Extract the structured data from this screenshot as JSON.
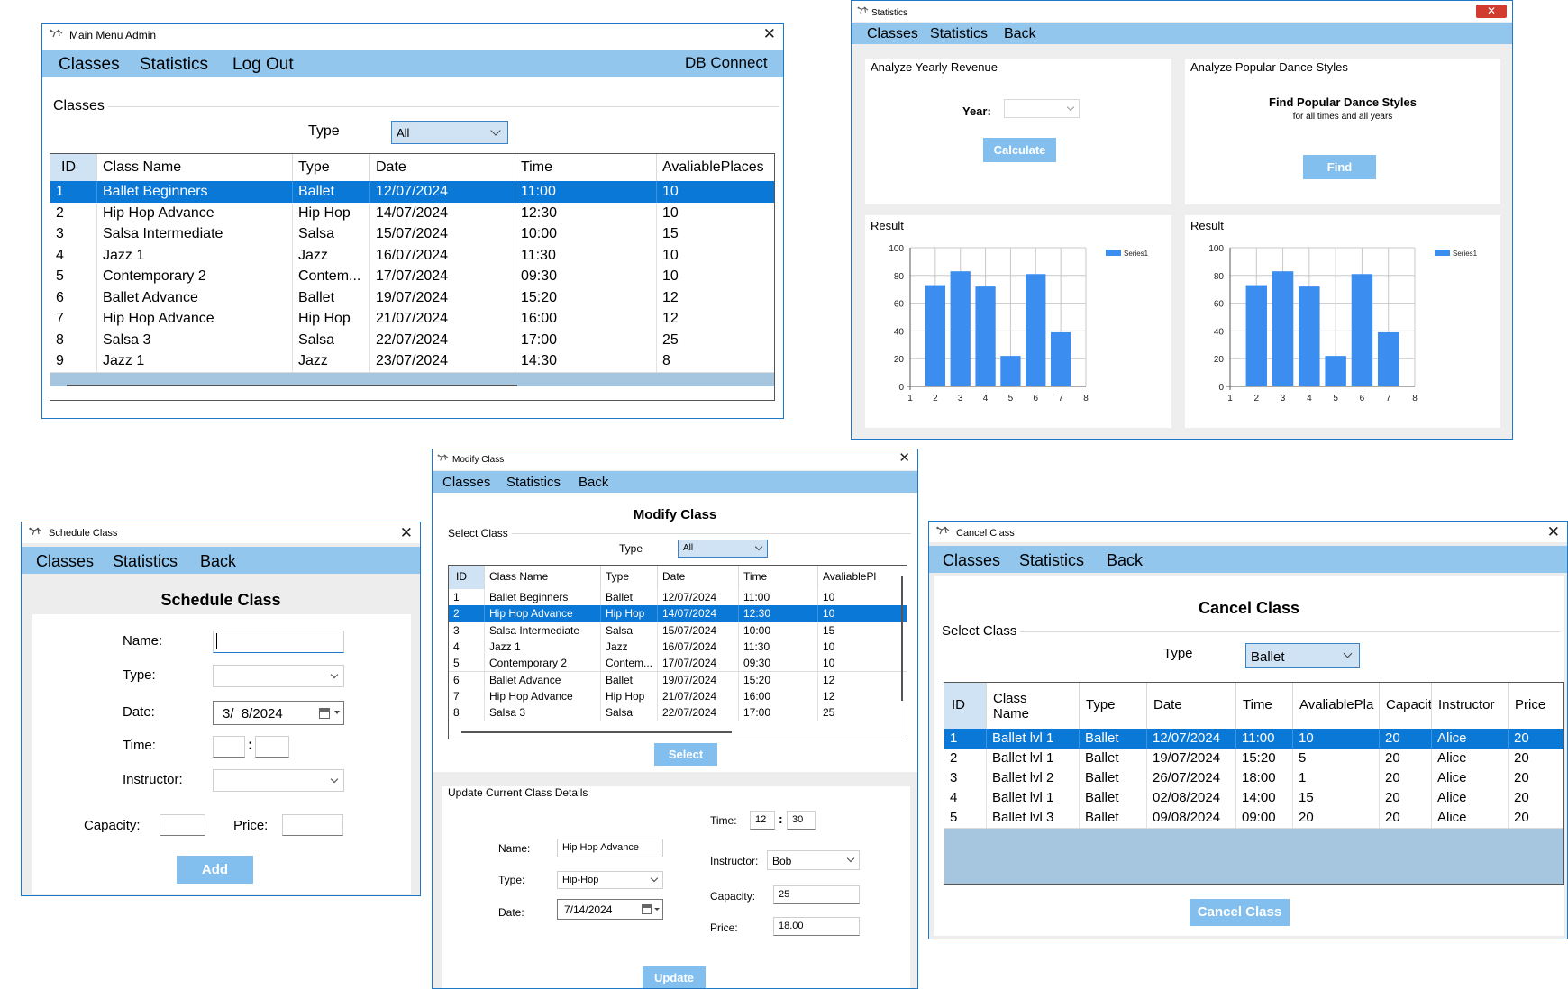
{
  "main_menu": {
    "title": "Main Menu Admin",
    "menu": [
      "Classes",
      "Statistics",
      "Log Out"
    ],
    "db_connect": "DB Connect",
    "group_title": "Classes",
    "type_label": "Type",
    "type_value": "All",
    "columns": [
      "ID",
      "Class Name",
      "Type",
      "Date",
      "Time",
      "AvaliablePlaces"
    ],
    "rows": [
      [
        "1",
        "Ballet Beginners",
        "Ballet",
        "12/07/2024",
        "11:00",
        "10"
      ],
      [
        "2",
        "Hip Hop Advance",
        "Hip Hop",
        "14/07/2024",
        "12:30",
        "10"
      ],
      [
        "3",
        "Salsa Intermediate",
        "Salsa",
        "15/07/2024",
        "10:00",
        "15"
      ],
      [
        "4",
        "Jazz 1",
        "Jazz",
        "16/07/2024",
        "11:30",
        "10"
      ],
      [
        "5",
        "Contemporary 2",
        "Contem...",
        "17/07/2024",
        "09:30",
        "10"
      ],
      [
        "6",
        "Ballet Advance",
        "Ballet",
        "19/07/2024",
        "15:20",
        "12"
      ],
      [
        "7",
        "Hip Hop Advance",
        "Hip Hop",
        "21/07/2024",
        "16:00",
        "12"
      ],
      [
        "8",
        "Salsa 3",
        "Salsa",
        "22/07/2024",
        "17:00",
        "25"
      ],
      [
        "9",
        "Jazz 1",
        "Jazz",
        "23/07/2024",
        "14:30",
        "8"
      ]
    ]
  },
  "statistics": {
    "title": "Statistics",
    "menu": [
      "Classes",
      "Statistics",
      "Back"
    ],
    "revenue_group": "Analyze Yearly Revenue",
    "year_label": "Year:",
    "year_value": "",
    "calculate_label": "Calculate",
    "styles_group": "Analyze Popular Dance Styles",
    "find_title": "Find Popular Dance Styles",
    "find_subtitle": "for all times and all years",
    "find_label": "Find",
    "result_label": "Result"
  },
  "chart_data": [
    {
      "type": "bar",
      "x": [
        2,
        3,
        4,
        5,
        6,
        7
      ],
      "series": [
        {
          "name": "Series1",
          "values": [
            73,
            83,
            72,
            22,
            81,
            39
          ]
        }
      ],
      "x_ticks": [
        1,
        2,
        3,
        4,
        5,
        6,
        7,
        8
      ],
      "y_ticks": [
        0,
        20,
        40,
        60,
        80,
        100
      ],
      "xlim": [
        1,
        8
      ],
      "ylim": [
        0,
        100
      ],
      "grid": true,
      "legend": "top-right",
      "color": "#3b8ef0"
    },
    {
      "type": "bar",
      "x": [
        2,
        3,
        4,
        5,
        6,
        7
      ],
      "series": [
        {
          "name": "Series1",
          "values": [
            73,
            83,
            72,
            22,
            81,
            39
          ]
        }
      ],
      "x_ticks": [
        1,
        2,
        3,
        4,
        5,
        6,
        7,
        8
      ],
      "y_ticks": [
        0,
        20,
        40,
        60,
        80,
        100
      ],
      "xlim": [
        1,
        8
      ],
      "ylim": [
        0,
        100
      ],
      "grid": true,
      "legend": "top-right",
      "color": "#3b8ef0"
    }
  ],
  "schedule": {
    "title": "Schedule Class",
    "menu": [
      "Classes",
      "Statistics",
      "Back"
    ],
    "heading": "Schedule Class",
    "name_label": "Name:",
    "type_label": "Type:",
    "date_label": "Date:",
    "date_value": "3/  8/2024",
    "time_label": "Time:",
    "time_separator": ":",
    "instructor_label": "Instructor:",
    "capacity_label": "Capacity:",
    "price_label": "Price:",
    "add_label": "Add"
  },
  "modify": {
    "title": "Modify Class",
    "menu": [
      "Classes",
      "Statistics",
      "Back"
    ],
    "heading": "Modify Class",
    "select_group": "Select Class",
    "type_label": "Type",
    "type_value": "All",
    "columns": [
      "ID",
      "Class Name",
      "Type",
      "Date",
      "Time",
      "AvaliablePl"
    ],
    "rows": [
      [
        "1",
        "Ballet Beginners",
        "Ballet",
        "12/07/2024",
        "11:00",
        "10"
      ],
      [
        "2",
        "Hip Hop Advance",
        "Hip Hop",
        "14/07/2024",
        "12:30",
        "10"
      ],
      [
        "3",
        "Salsa Intermediate",
        "Salsa",
        "15/07/2024",
        "10:00",
        "15"
      ],
      [
        "4",
        "Jazz 1",
        "Jazz",
        "16/07/2024",
        "11:30",
        "10"
      ],
      [
        "5",
        "Contemporary 2",
        "Contem...",
        "17/07/2024",
        "09:30",
        "10"
      ],
      [
        "6",
        "Ballet Advance",
        "Ballet",
        "19/07/2024",
        "15:20",
        "12"
      ],
      [
        "7",
        "Hip Hop Advance",
        "Hip Hop",
        "21/07/2024",
        "16:00",
        "12"
      ],
      [
        "8",
        "Salsa 3",
        "Salsa",
        "22/07/2024",
        "17:00",
        "25"
      ]
    ],
    "select_label": "Select",
    "update_group": "Update Current Class Details",
    "name_label": "Name:",
    "name_value": "Hip Hop Advance",
    "type2_label": "Type:",
    "type2_value": "Hip-Hop",
    "date_label": "Date:",
    "date_value": "7/14/2024",
    "time_label": "Time:",
    "time_hour": "12",
    "time_sep": ":",
    "time_minute": "30",
    "instructor_label": "Instructor:",
    "instructor_value": "Bob",
    "capacity_label": "Capacity:",
    "capacity_value": "25",
    "price_label": "Price:",
    "price_value": "18.00",
    "update_label": "Update"
  },
  "cancel": {
    "title": "Cancel Class",
    "menu": [
      "Classes",
      "Statistics",
      "Back"
    ],
    "heading": "Cancel Class",
    "select_group": "Select Class",
    "type_label": "Type",
    "type_value": "Ballet",
    "columns": [
      "ID",
      "Class\nName",
      "Type",
      "Date",
      "Time",
      "AvaliablePla",
      "Capacity",
      "Instructor",
      "Price"
    ],
    "rows": [
      [
        "1",
        "Ballet lvl 1",
        "Ballet",
        "12/07/2024",
        "11:00",
        "10",
        "20",
        "Alice",
        "20"
      ],
      [
        "2",
        "Ballet lvl 1",
        "Ballet",
        "19/07/2024",
        "15:20",
        "5",
        "20",
        "Alice",
        "20"
      ],
      [
        "3",
        "Ballet lvl 2",
        "Ballet",
        "26/07/2024",
        "18:00",
        "1",
        "20",
        "Alice",
        "20"
      ],
      [
        "4",
        "Ballet lvl 1",
        "Ballet",
        "02/08/2024",
        "14:00",
        "15",
        "20",
        "Alice",
        "20"
      ],
      [
        "5",
        "Ballet lvl 3",
        "Ballet",
        "09/08/2024",
        "09:00",
        "20",
        "20",
        "Alice",
        "20"
      ]
    ],
    "cancel_label": "Cancel Class"
  }
}
